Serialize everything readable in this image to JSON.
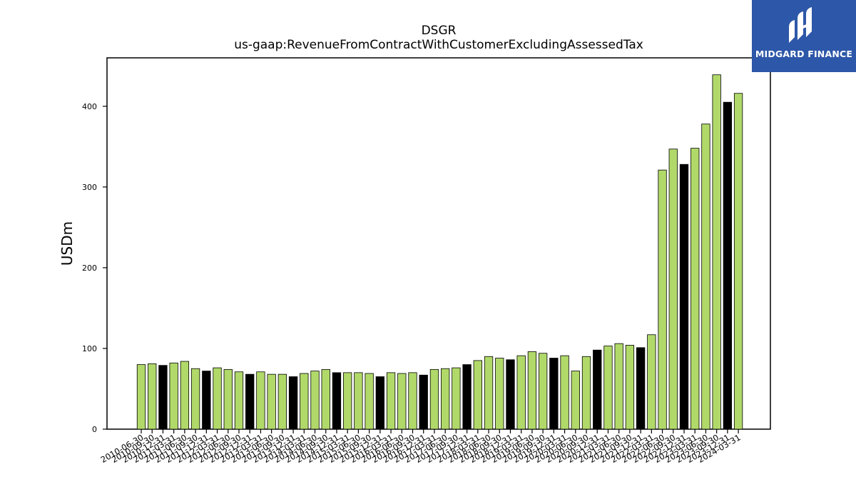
{
  "chart_data": {
    "type": "bar",
    "title": "DSGR",
    "subtitle": "us-gaap:RevenueFromContractWithCustomerExcludingAssessedTax",
    "xlabel": "",
    "ylabel": "USDm",
    "ylim": [
      0,
      460
    ],
    "yticks": [
      0,
      100,
      200,
      300,
      400
    ],
    "grid": false,
    "colors": {
      "regular": "#b1d96a",
      "highlight": "#000000",
      "edge": "#000000"
    },
    "categories": [
      "2010-06-30",
      "2010-09-30",
      "2010-12-31",
      "2011-03-31",
      "2011-06-30",
      "2011-09-30",
      "2011-12-31",
      "2012-03-31",
      "2012-06-30",
      "2012-09-30",
      "2012-12-31",
      "2013-03-31",
      "2013-06-30",
      "2013-09-30",
      "2013-12-31",
      "2014-03-31",
      "2014-06-30",
      "2014-09-30",
      "2014-12-31",
      "2015-03-31",
      "2015-06-30",
      "2015-09-30",
      "2015-12-31",
      "2016-03-31",
      "2016-06-30",
      "2016-09-30",
      "2016-12-31",
      "2017-03-31",
      "2017-06-30",
      "2017-09-30",
      "2017-12-31",
      "2018-03-31",
      "2018-06-30",
      "2018-09-30",
      "2018-12-31",
      "2019-03-31",
      "2019-06-30",
      "2019-09-30",
      "2019-12-31",
      "2020-03-31",
      "2020-06-30",
      "2020-09-30",
      "2020-12-31",
      "2021-03-31",
      "2021-06-30",
      "2021-09-30",
      "2021-12-31",
      "2022-03-31",
      "2022-06-30",
      "2022-09-30",
      "2022-12-31",
      "2023-03-31",
      "2023-06-30",
      "2023-09-30",
      "2023-12-31",
      "2024-03-31"
    ],
    "values": [
      80,
      81,
      79,
      82,
      84,
      75,
      72,
      76,
      74,
      71,
      68,
      71,
      68,
      68,
      65,
      69,
      72,
      74,
      70,
      70,
      70,
      69,
      65,
      70,
      69,
      70,
      67,
      74,
      75,
      76,
      80,
      85,
      90,
      88,
      86,
      91,
      96,
      94,
      88,
      91,
      72,
      90,
      98,
      103,
      106,
      104,
      101,
      117,
      321,
      347,
      328,
      348,
      378,
      439,
      405,
      416
    ],
    "highlight": [
      false,
      false,
      true,
      false,
      false,
      false,
      true,
      false,
      false,
      false,
      true,
      false,
      false,
      false,
      true,
      false,
      false,
      false,
      true,
      false,
      false,
      false,
      true,
      false,
      false,
      false,
      true,
      false,
      false,
      false,
      true,
      false,
      false,
      false,
      true,
      false,
      false,
      false,
      true,
      false,
      false,
      false,
      true,
      false,
      false,
      false,
      true,
      false,
      false,
      false,
      true,
      false,
      false,
      false,
      true,
      false
    ]
  },
  "logo": {
    "brand": "MIDGARD FINANCE",
    "icon": "midgard-logo-icon"
  }
}
